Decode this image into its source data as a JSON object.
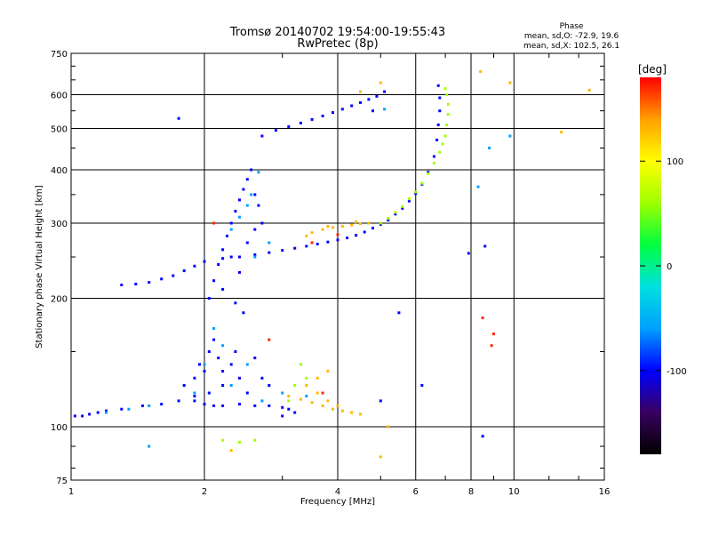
{
  "chart_data": {
    "type": "scatter",
    "title": "Tromsø 20140702 19:54:00-19:55:43",
    "subtitle": "RwPretec (8p)",
    "xlabel": "Frequency [MHz]",
    "ylabel": "Stationary phase Virtual Height [km]",
    "x_scale": "log",
    "y_scale": "log",
    "xlim": [
      1,
      16
    ],
    "ylim": [
      75,
      750
    ],
    "xticks": [
      "1",
      "2",
      "4",
      "6",
      "8",
      "10",
      "16"
    ],
    "xtick_values": [
      1,
      2,
      4,
      6,
      8,
      10,
      16
    ],
    "yticks": [
      "75",
      "100",
      "200",
      "300",
      "400",
      "500",
      "600",
      "750"
    ],
    "ytick_values": [
      75,
      100,
      200,
      300,
      400,
      500,
      600,
      750
    ],
    "grid": true,
    "stats": {
      "heading": "Phase",
      "line1": "mean, sd,O: -72.9, 19.6",
      "line2": "mean, sd,X: 102.5, 26.1"
    },
    "colorbar": {
      "label": "[deg]",
      "range": [
        -180,
        180
      ],
      "ticks": [
        "100",
        "0",
        "-100"
      ],
      "tick_values": [
        100,
        0,
        -100
      ],
      "colors": [
        "#000000",
        "#3a0060",
        "#0000ff",
        "#00a0ff",
        "#00e0e0",
        "#00ff40",
        "#a0ff00",
        "#ffff00",
        "#ffa000",
        "#ff0000"
      ]
    },
    "series": [
      {
        "phase": -100,
        "points": [
          [
            1.02,
            106
          ],
          [
            1.06,
            106
          ],
          [
            1.1,
            107
          ],
          [
            1.15,
            108
          ],
          [
            1.2,
            109
          ],
          [
            1.3,
            110
          ],
          [
            1.45,
            112
          ],
          [
            1.6,
            113
          ],
          [
            1.75,
            115
          ],
          [
            1.9,
            118
          ],
          [
            2.0,
            113
          ],
          [
            2.1,
            112
          ],
          [
            2.2,
            112
          ],
          [
            2.4,
            113
          ],
          [
            2.6,
            112
          ],
          [
            2.8,
            112
          ],
          [
            3.0,
            111
          ],
          [
            3.1,
            110
          ],
          [
            1.8,
            125
          ],
          [
            1.9,
            130
          ],
          [
            1.95,
            140
          ],
          [
            2.0,
            135
          ],
          [
            2.05,
            150
          ],
          [
            2.1,
            160
          ],
          [
            2.15,
            145
          ],
          [
            2.2,
            125
          ],
          [
            2.3,
            140
          ],
          [
            2.4,
            130
          ],
          [
            2.5,
            120
          ],
          [
            2.6,
            145
          ],
          [
            2.7,
            130
          ],
          [
            2.8,
            125
          ],
          [
            2.2,
            135
          ],
          [
            2.05,
            120
          ],
          [
            1.9,
            115
          ],
          [
            2.35,
            150
          ],
          [
            2.05,
            200
          ],
          [
            2.1,
            220
          ],
          [
            2.15,
            240
          ],
          [
            2.2,
            260
          ],
          [
            2.25,
            280
          ],
          [
            2.3,
            300
          ],
          [
            2.35,
            320
          ],
          [
            2.4,
            340
          ],
          [
            2.45,
            360
          ],
          [
            2.5,
            380
          ],
          [
            2.55,
            400
          ],
          [
            2.6,
            350
          ],
          [
            2.65,
            330
          ],
          [
            2.7,
            300
          ],
          [
            2.3,
            250
          ],
          [
            2.4,
            230
          ],
          [
            2.5,
            270
          ],
          [
            2.6,
            290
          ],
          [
            2.2,
            210
          ],
          [
            2.35,
            195
          ],
          [
            2.45,
            185
          ],
          [
            1.3,
            215
          ],
          [
            1.4,
            216
          ],
          [
            1.5,
            218
          ],
          [
            1.6,
            222
          ],
          [
            1.7,
            226
          ],
          [
            1.8,
            232
          ],
          [
            1.9,
            238
          ],
          [
            2.0,
            244
          ],
          [
            2.2,
            248
          ],
          [
            2.4,
            250
          ],
          [
            2.6,
            253
          ],
          [
            2.8,
            256
          ],
          [
            3.0,
            259
          ],
          [
            3.2,
            262
          ],
          [
            3.4,
            265
          ],
          [
            3.6,
            268
          ],
          [
            3.8,
            271
          ],
          [
            4.0,
            274
          ],
          [
            4.2,
            277
          ],
          [
            4.4,
            281
          ],
          [
            4.6,
            286
          ],
          [
            4.8,
            292
          ],
          [
            5.0,
            298
          ],
          [
            5.2,
            305
          ],
          [
            5.4,
            315
          ],
          [
            5.6,
            325
          ],
          [
            5.8,
            338
          ],
          [
            6.0,
            352
          ],
          [
            6.2,
            370
          ],
          [
            6.4,
            395
          ],
          [
            6.6,
            430
          ],
          [
            6.7,
            470
          ],
          [
            6.75,
            510
          ],
          [
            6.8,
            550
          ],
          [
            6.8,
            590
          ],
          [
            6.75,
            630
          ],
          [
            2.7,
            480
          ],
          [
            2.9,
            495
          ],
          [
            3.1,
            505
          ],
          [
            3.3,
            515
          ],
          [
            3.5,
            525
          ],
          [
            3.7,
            535
          ],
          [
            3.9,
            545
          ],
          [
            4.1,
            555
          ],
          [
            4.3,
            565
          ],
          [
            4.5,
            575
          ],
          [
            4.7,
            585
          ],
          [
            4.9,
            595
          ],
          [
            5.1,
            610
          ],
          [
            3.0,
            106
          ],
          [
            3.2,
            108
          ],
          [
            1.75,
            528
          ],
          [
            4.8,
            550
          ],
          [
            5.0,
            115
          ],
          [
            5.5,
            185
          ],
          [
            6.2,
            125
          ],
          [
            7.9,
            255
          ],
          [
            8.6,
            265
          ],
          [
            8.5,
            95
          ]
        ]
      },
      {
        "phase": -60,
        "points": [
          [
            1.9,
            120
          ],
          [
            2.0,
            140
          ],
          [
            2.1,
            170
          ],
          [
            2.2,
            155
          ],
          [
            2.3,
            125
          ],
          [
            2.5,
            140
          ],
          [
            2.7,
            115
          ],
          [
            2.4,
            310
          ],
          [
            2.5,
            330
          ],
          [
            2.3,
            290
          ],
          [
            2.6,
            250
          ],
          [
            2.8,
            270
          ],
          [
            2.55,
            350
          ],
          [
            2.65,
            395
          ],
          [
            1.2,
            108
          ],
          [
            1.35,
            110
          ],
          [
            1.5,
            112
          ],
          [
            3.0,
            120
          ],
          [
            3.4,
            118
          ],
          [
            1.5,
            90
          ],
          [
            5.1,
            555
          ],
          [
            9.8,
            480
          ],
          [
            8.8,
            450
          ],
          [
            8.3,
            365
          ]
        ]
      },
      {
        "phase": 60,
        "points": [
          [
            5.0,
            300
          ],
          [
            5.2,
            308
          ],
          [
            5.4,
            318
          ],
          [
            5.6,
            328
          ],
          [
            5.8,
            342
          ],
          [
            6.0,
            355
          ],
          [
            6.2,
            372
          ],
          [
            6.4,
            392
          ],
          [
            6.6,
            415
          ],
          [
            6.8,
            440
          ],
          [
            6.9,
            460
          ],
          [
            7.0,
            480
          ],
          [
            7.05,
            510
          ],
          [
            7.1,
            540
          ],
          [
            7.1,
            570
          ],
          [
            7.05,
            600
          ],
          [
            7.0,
            620
          ],
          [
            2.2,
            93
          ],
          [
            2.4,
            92
          ],
          [
            2.6,
            93
          ],
          [
            3.2,
            125
          ],
          [
            3.4,
            130
          ],
          [
            3.3,
            140
          ],
          [
            3.1,
            115
          ]
        ]
      },
      {
        "phase": 130,
        "points": [
          [
            3.5,
            285
          ],
          [
            3.7,
            290
          ],
          [
            3.9,
            293
          ],
          [
            4.1,
            295
          ],
          [
            4.3,
            297
          ],
          [
            4.5,
            299
          ],
          [
            4.7,
            300
          ],
          [
            3.4,
            280
          ],
          [
            3.8,
            295
          ],
          [
            4.4,
            302
          ],
          [
            3.1,
            118
          ],
          [
            3.3,
            116
          ],
          [
            3.5,
            114
          ],
          [
            3.7,
            112
          ],
          [
            3.9,
            110
          ],
          [
            4.1,
            109
          ],
          [
            4.3,
            108
          ],
          [
            4.5,
            107
          ],
          [
            3.6,
            120
          ],
          [
            3.8,
            115
          ],
          [
            4.0,
            112
          ],
          [
            3.4,
            125
          ],
          [
            3.6,
            130
          ],
          [
            3.8,
            135
          ],
          [
            5.0,
            640
          ],
          [
            4.5,
            610
          ],
          [
            5.2,
            100
          ],
          [
            5.0,
            85
          ],
          [
            8.4,
            680
          ],
          [
            9.8,
            640
          ],
          [
            12.8,
            490
          ],
          [
            14.8,
            615
          ],
          [
            2.3,
            88
          ]
        ]
      },
      {
        "phase": 170,
        "points": [
          [
            3.5,
            270
          ],
          [
            4.0,
            282
          ],
          [
            3.7,
            120
          ],
          [
            2.8,
            160
          ],
          [
            9.0,
            165
          ],
          [
            8.9,
            155
          ],
          [
            2.1,
            300
          ],
          [
            8.5,
            180
          ]
        ]
      }
    ]
  }
}
